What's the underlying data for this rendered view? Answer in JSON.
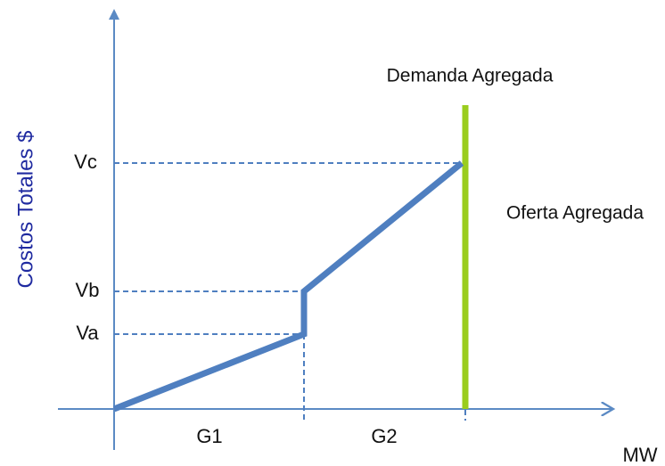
{
  "y_axis_title": "Costos Totales $",
  "x_axis_title": "MW",
  "levels": [
    "Va",
    "Vb",
    "Vc"
  ],
  "segments": [
    "G1",
    "G2"
  ],
  "demand_label": "Demanda Agregada",
  "supply_label": "Oferta Agregada"
}
